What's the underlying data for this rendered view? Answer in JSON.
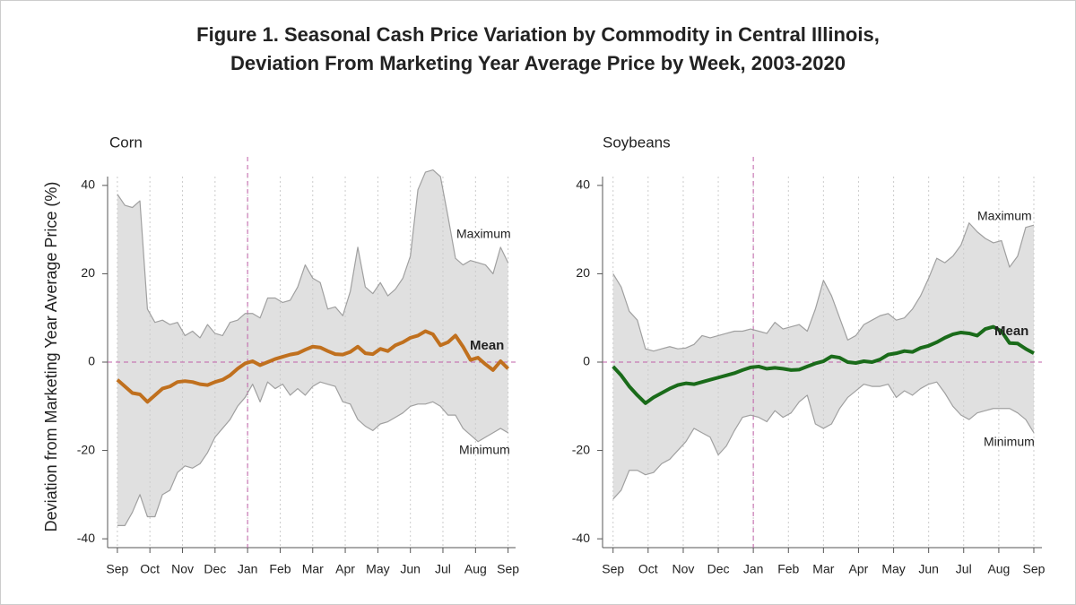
{
  "title": [
    "Figure 1. Seasonal Cash Price Variation by Commodity in Central Illinois,",
    "Deviation From Marketing Year Average Price by Week, 2003-2020"
  ],
  "ylabel": "Deviation from Marketing Year Average Price (%)",
  "chart_data": [
    {
      "type": "line",
      "subtitle": "Corn",
      "band_color": "#e0e0e0",
      "grid": "x",
      "hline": 0,
      "vline": 17.33,
      "reference_color": "#c060a8",
      "x": [
        0,
        1,
        2,
        3,
        4,
        5,
        6,
        7,
        8,
        9,
        10,
        11,
        12,
        13,
        14,
        15,
        16,
        17,
        18,
        19,
        20,
        21,
        22,
        23,
        24,
        25,
        26,
        27,
        28,
        29,
        30,
        31,
        32,
        33,
        34,
        35,
        36,
        37,
        38,
        39,
        40,
        41,
        42,
        43,
        44,
        45,
        46,
        47,
        48,
        49,
        50,
        51,
        52
      ],
      "xlim": [
        -1.3,
        53
      ],
      "ylim": [
        -42,
        42
      ],
      "xticks": [
        {
          "value": 0,
          "label": "Sep"
        },
        {
          "value": 4.33,
          "label": "Oct"
        },
        {
          "value": 8.67,
          "label": "Nov"
        },
        {
          "value": 13,
          "label": "Dec"
        },
        {
          "value": 17.33,
          "label": "Jan"
        },
        {
          "value": 21.67,
          "label": "Feb"
        },
        {
          "value": 26,
          "label": "Mar"
        },
        {
          "value": 30.33,
          "label": "Apr"
        },
        {
          "value": 34.67,
          "label": "May"
        },
        {
          "value": 39,
          "label": "Jun"
        },
        {
          "value": 43.33,
          "label": "Jul"
        },
        {
          "value": 47.67,
          "label": "Aug"
        },
        {
          "value": 52,
          "label": "Sep"
        }
      ],
      "yticks": [
        -40,
        -20,
        0,
        20,
        40
      ],
      "series": [
        {
          "name": "Maximum",
          "color": "#a0a0a0",
          "values": [
            38,
            35.5,
            35,
            36.5,
            12,
            9,
            9.5,
            8.5,
            9,
            6,
            7,
            5.5,
            8.5,
            6.5,
            6,
            9,
            9.5,
            11,
            11,
            10,
            14.5,
            14.5,
            13.5,
            14,
            17,
            22,
            19,
            18,
            12,
            12.5,
            10.5,
            16,
            26,
            17,
            15.5,
            18,
            15,
            16.5,
            19,
            24,
            39,
            43,
            43.5,
            42,
            33,
            23.5,
            22,
            23,
            22.5,
            22,
            20,
            26,
            22.5
          ]
        },
        {
          "name": "Minimum",
          "color": "#a0a0a0",
          "values": [
            -37,
            -37,
            -34,
            -30,
            -35,
            -35,
            -30,
            -29,
            -25,
            -23.5,
            -24,
            -23,
            -20.5,
            -17,
            -15,
            -13,
            -10,
            -8,
            -5,
            -9,
            -4.5,
            -6,
            -5,
            -7.5,
            -6,
            -7.5,
            -5.5,
            -4.5,
            -5,
            -5.5,
            -9,
            -9.5,
            -13,
            -14.5,
            -15.5,
            -14,
            -13.5,
            -12.5,
            -11.5,
            -10,
            -9.5,
            -9.5,
            -9,
            -10,
            -12,
            -12,
            -15,
            -16.5,
            -18,
            -17,
            -16,
            -15,
            -16
          ]
        },
        {
          "name": "Mean",
          "color": "#c0701e",
          "values": [
            -4,
            -5.5,
            -7,
            -7.3,
            -9,
            -7.5,
            -6,
            -5.5,
            -4.5,
            -4.3,
            -4.5,
            -5,
            -5.2,
            -4.5,
            -4,
            -3,
            -1.5,
            -0.3,
            0.2,
            -0.7,
            0,
            0.7,
            1.2,
            1.7,
            2,
            2.8,
            3.5,
            3.3,
            2.5,
            1.8,
            1.7,
            2.3,
            3.5,
            2,
            1.8,
            3,
            2.5,
            3.8,
            4.5,
            5.5,
            6,
            7,
            6.3,
            3.8,
            4.5,
            6,
            3.5,
            0.5,
            1,
            -0.5,
            -1.8,
            0.2,
            -1.5
          ]
        }
      ]
    },
    {
      "type": "line",
      "subtitle": "Soybeans",
      "band_color": "#e0e0e0",
      "grid": "x",
      "hline": 0,
      "vline": 17.33,
      "reference_color": "#c060a8",
      "x": [
        0,
        1,
        2,
        3,
        4,
        5,
        6,
        7,
        8,
        9,
        10,
        11,
        12,
        13,
        14,
        15,
        16,
        17,
        18,
        19,
        20,
        21,
        22,
        23,
        24,
        25,
        26,
        27,
        28,
        29,
        30,
        31,
        32,
        33,
        34,
        35,
        36,
        37,
        38,
        39,
        40,
        41,
        42,
        43,
        44,
        45,
        46,
        47,
        48,
        49,
        50,
        51,
        52
      ],
      "xlim": [
        -1.3,
        53
      ],
      "ylim": [
        -42,
        42
      ],
      "xticks": [
        {
          "value": 0,
          "label": "Sep"
        },
        {
          "value": 4.33,
          "label": "Oct"
        },
        {
          "value": 8.67,
          "label": "Nov"
        },
        {
          "value": 13,
          "label": "Dec"
        },
        {
          "value": 17.33,
          "label": "Jan"
        },
        {
          "value": 21.67,
          "label": "Feb"
        },
        {
          "value": 26,
          "label": "Mar"
        },
        {
          "value": 30.33,
          "label": "Apr"
        },
        {
          "value": 34.67,
          "label": "May"
        },
        {
          "value": 39,
          "label": "Jun"
        },
        {
          "value": 43.33,
          "label": "Jul"
        },
        {
          "value": 47.67,
          "label": "Aug"
        },
        {
          "value": 52,
          "label": "Sep"
        }
      ],
      "yticks": [
        -40,
        -20,
        0,
        20,
        40
      ],
      "series": [
        {
          "name": "Maximum",
          "color": "#a0a0a0",
          "values": [
            20,
            17,
            11.5,
            9.5,
            3,
            2.5,
            3,
            3.5,
            3,
            3.2,
            4,
            6,
            5.5,
            6,
            6.5,
            7,
            7,
            7.5,
            7,
            6.5,
            9,
            7.5,
            8,
            8.5,
            7,
            12,
            18.5,
            15,
            10,
            5,
            6,
            8.5,
            9.5,
            10.5,
            11,
            9.5,
            10,
            12,
            15,
            19,
            23.5,
            22.5,
            24,
            26.5,
            31.5,
            29.5,
            28,
            27,
            27.5,
            21.5,
            24,
            30.5,
            31
          ]
        },
        {
          "name": "Minimum",
          "color": "#a0a0a0",
          "values": [
            -31,
            -29,
            -24.5,
            -24.5,
            -25.5,
            -25,
            -23,
            -22,
            -20,
            -18,
            -15,
            -16,
            -17,
            -21,
            -19,
            -15.5,
            -12.5,
            -12,
            -12.5,
            -13.5,
            -11,
            -12.5,
            -11.5,
            -9,
            -7.5,
            -14,
            -15,
            -14,
            -10.5,
            -8,
            -6.5,
            -5,
            -5.5,
            -5.5,
            -5,
            -8,
            -6.5,
            -7.5,
            -6,
            -5,
            -4.5,
            -7,
            -10,
            -12,
            -13,
            -11.5,
            -11,
            -10.5,
            -10.5,
            -10.5,
            -11.5,
            -13,
            -16
          ]
        },
        {
          "name": "Mean",
          "color": "#1a6b1a",
          "values": [
            -1,
            -3,
            -5.5,
            -7.5,
            -9.3,
            -8,
            -7,
            -6,
            -5.2,
            -4.8,
            -5,
            -4.5,
            -4,
            -3.5,
            -3,
            -2.5,
            -1.8,
            -1.2,
            -1,
            -1.5,
            -1.3,
            -1.5,
            -1.8,
            -1.7,
            -1,
            -0.3,
            0.2,
            1.3,
            1,
            0,
            -0.2,
            0.2,
            0,
            0.6,
            1.7,
            2,
            2.5,
            2.3,
            3.2,
            3.7,
            4.5,
            5.5,
            6.3,
            6.7,
            6.5,
            6,
            7.5,
            8,
            7,
            4.3,
            4.2,
            3,
            2
          ]
        }
      ]
    }
  ]
}
